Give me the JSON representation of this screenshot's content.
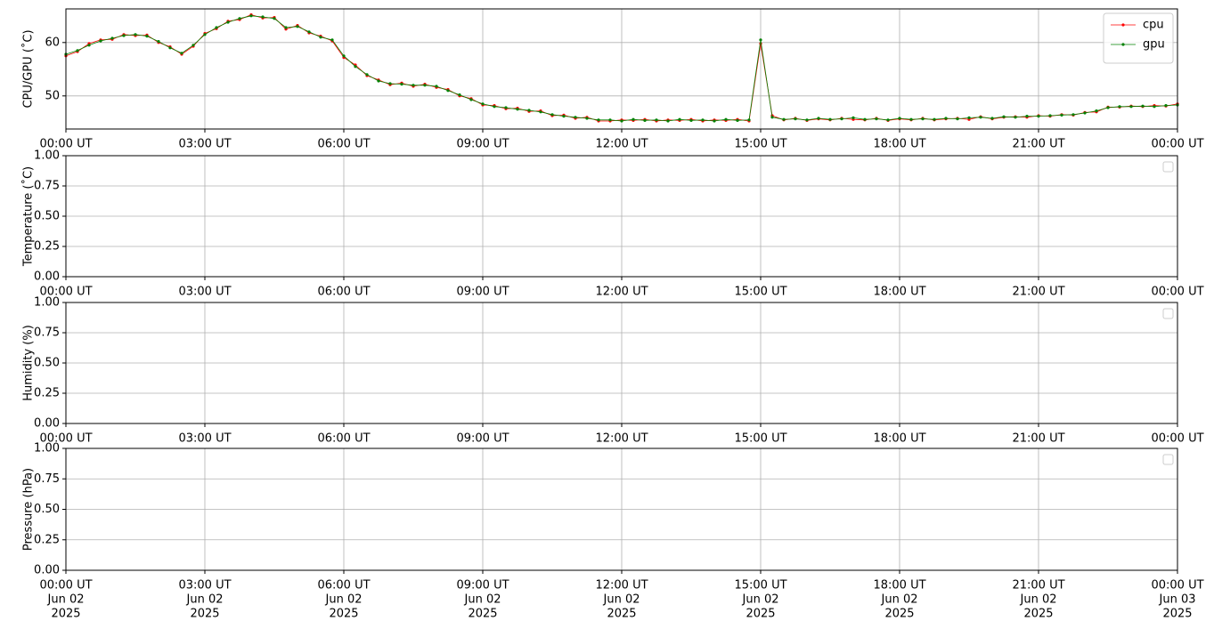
{
  "chart_data": [
    {
      "type": "line",
      "ylabel": "CPU/GPU (˚C)",
      "x": [
        "2025-06-02 00:00",
        "2025-06-02 00:15",
        "2025-06-02 00:30",
        "2025-06-02 00:45",
        "2025-06-02 01:00",
        "2025-06-02 01:15",
        "2025-06-02 01:30",
        "2025-06-02 01:45",
        "2025-06-02 02:00",
        "2025-06-02 02:15",
        "2025-06-02 02:30",
        "2025-06-02 02:45",
        "2025-06-02 03:00",
        "2025-06-02 03:15",
        "2025-06-02 03:30",
        "2025-06-02 03:45",
        "2025-06-02 04:00",
        "2025-06-02 04:15",
        "2025-06-02 04:30",
        "2025-06-02 04:45",
        "2025-06-02 05:00",
        "2025-06-02 05:15",
        "2025-06-02 05:30",
        "2025-06-02 05:45",
        "2025-06-02 06:00",
        "2025-06-02 06:15",
        "2025-06-02 06:30",
        "2025-06-02 06:45",
        "2025-06-02 07:00",
        "2025-06-02 07:15",
        "2025-06-02 07:30",
        "2025-06-02 07:45",
        "2025-06-02 08:00",
        "2025-06-02 08:15",
        "2025-06-02 08:30",
        "2025-06-02 08:45",
        "2025-06-02 09:00",
        "2025-06-02 09:15",
        "2025-06-02 09:30",
        "2025-06-02 09:45",
        "2025-06-02 10:00",
        "2025-06-02 10:15",
        "2025-06-02 10:30",
        "2025-06-02 10:45",
        "2025-06-02 11:00",
        "2025-06-02 11:15",
        "2025-06-02 11:30",
        "2025-06-02 11:45",
        "2025-06-02 12:00",
        "2025-06-02 12:15",
        "2025-06-02 12:30",
        "2025-06-02 12:45",
        "2025-06-02 13:00",
        "2025-06-02 13:15",
        "2025-06-02 13:30",
        "2025-06-02 13:45",
        "2025-06-02 14:00",
        "2025-06-02 14:15",
        "2025-06-02 14:30",
        "2025-06-02 14:45",
        "2025-06-02 15:00",
        "2025-06-02 15:15",
        "2025-06-02 15:30",
        "2025-06-02 15:45",
        "2025-06-02 16:00",
        "2025-06-02 16:15",
        "2025-06-02 16:30",
        "2025-06-02 16:45",
        "2025-06-02 17:00",
        "2025-06-02 17:15",
        "2025-06-02 17:30",
        "2025-06-02 17:45",
        "2025-06-02 18:00",
        "2025-06-02 18:15",
        "2025-06-02 18:30",
        "2025-06-02 18:45",
        "2025-06-02 19:00",
        "2025-06-02 19:15",
        "2025-06-02 19:30",
        "2025-06-02 19:45",
        "2025-06-02 20:00",
        "2025-06-02 20:15",
        "2025-06-02 20:30",
        "2025-06-02 20:45",
        "2025-06-02 21:00",
        "2025-06-02 21:15",
        "2025-06-02 21:30",
        "2025-06-02 21:45",
        "2025-06-02 22:00",
        "2025-06-02 22:15",
        "2025-06-02 22:30",
        "2025-06-02 22:45",
        "2025-06-02 23:00",
        "2025-06-02 23:15",
        "2025-06-02 23:30",
        "2025-06-02 23:45",
        "2025-06-03 00:00"
      ],
      "series": [
        {
          "name": "cpu",
          "color": "#ff0000",
          "values": [
            57.5,
            58.3,
            59.8,
            60.5,
            60.6,
            61.5,
            61.3,
            61.4,
            60,
            59.2,
            57.8,
            59.3,
            61.7,
            62.6,
            64,
            64.3,
            65.2,
            64.6,
            64.7,
            62.5,
            63.2,
            61.8,
            61.2,
            60.3,
            57.2,
            55.8,
            53.8,
            53,
            52.1,
            52.4,
            51.8,
            52.2,
            51.6,
            51.2,
            50,
            49.5,
            48.3,
            48.2,
            47.6,
            47.7,
            47.1,
            47.2,
            46.3,
            46.4,
            45.8,
            46,
            45.3,
            45.3,
            45.5,
            45.4,
            45.6,
            45.3,
            45.5,
            45.4,
            45.6,
            45.3,
            45.5,
            45.4,
            45.6,
            45.3,
            59.8,
            46.3,
            45.5,
            45.8,
            45.4,
            45.7,
            45.5,
            45.8,
            45.6,
            45.5,
            45.8,
            45.4,
            45.7,
            45.5,
            45.8,
            45.5,
            45.7,
            45.8,
            45.6,
            46.1,
            45.7,
            46,
            46.1,
            46,
            46.3,
            46.2,
            46.5,
            46.4,
            46.9,
            47,
            47.9,
            47.9,
            48.1,
            48,
            48.2,
            48.1,
            48.5
          ]
        },
        {
          "name": "gpu",
          "color": "#008000",
          "values": [
            57.8,
            58.5,
            59.5,
            60.3,
            60.8,
            61.3,
            61.5,
            61.2,
            60.2,
            59,
            58,
            59.5,
            61.5,
            62.8,
            63.8,
            64.5,
            65,
            64.8,
            64.5,
            62.8,
            63,
            62,
            61,
            60.5,
            57.5,
            55.5,
            54,
            52.8,
            52.3,
            52.2,
            52,
            52,
            51.8,
            51,
            50.2,
            49.3,
            48.5,
            48,
            47.8,
            47.5,
            47.3,
            47,
            46.5,
            46.2,
            46,
            45.8,
            45.5,
            45.5,
            45.3,
            45.6,
            45.4,
            45.5,
            45.3,
            45.6,
            45.4,
            45.5,
            45.3,
            45.6,
            45.4,
            45.5,
            60.5,
            46,
            45.6,
            45.7,
            45.5,
            45.8,
            45.6,
            45.7,
            45.9,
            45.6,
            45.7,
            45.5,
            45.8,
            45.6,
            45.7,
            45.6,
            45.8,
            45.7,
            45.9,
            46,
            45.8,
            46.1,
            46,
            46.2,
            46.2,
            46.3,
            46.4,
            46.5,
            46.8,
            47.2,
            47.8,
            48,
            48,
            48.1,
            48,
            48.2,
            48.3
          ]
        }
      ],
      "legend": "upper right",
      "xlim": [
        "2025-06-02 00:00",
        "2025-06-03 00:00"
      ],
      "xticks": [
        {
          "value": "2025-06-02 00:00",
          "label": "00:00 UT"
        },
        {
          "value": "2025-06-02 03:00",
          "label": "03:00 UT"
        },
        {
          "value": "2025-06-02 06:00",
          "label": "06:00 UT"
        },
        {
          "value": "2025-06-02 09:00",
          "label": "09:00 UT"
        },
        {
          "value": "2025-06-02 12:00",
          "label": "12:00 UT"
        },
        {
          "value": "2025-06-02 15:00",
          "label": "15:00 UT"
        },
        {
          "value": "2025-06-02 18:00",
          "label": "18:00 UT"
        },
        {
          "value": "2025-06-02 21:00",
          "label": "21:00 UT"
        },
        {
          "value": "2025-06-03 00:00",
          "label": "00:00 UT"
        }
      ],
      "ylim": [
        43.8,
        66.3
      ],
      "yticks": [
        50,
        60
      ],
      "grid": true
    },
    {
      "type": "line",
      "ylabel": "Temperature (˚C)",
      "xlim": [
        "2025-06-02 00:00",
        "2025-06-03 00:00"
      ],
      "xticks": [
        {
          "value": "2025-06-02 00:00",
          "label": "00:00 UT"
        },
        {
          "value": "2025-06-02 03:00",
          "label": "03:00 UT"
        },
        {
          "value": "2025-06-02 06:00",
          "label": "06:00 UT"
        },
        {
          "value": "2025-06-02 09:00",
          "label": "09:00 UT"
        },
        {
          "value": "2025-06-02 12:00",
          "label": "12:00 UT"
        },
        {
          "value": "2025-06-02 15:00",
          "label": "15:00 UT"
        },
        {
          "value": "2025-06-02 18:00",
          "label": "18:00 UT"
        },
        {
          "value": "2025-06-02 21:00",
          "label": "21:00 UT"
        },
        {
          "value": "2025-06-03 00:00",
          "label": "00:00 UT"
        }
      ],
      "ylim": [
        0,
        1
      ],
      "yticks": [
        {
          "value": 0,
          "label": "0.00"
        },
        {
          "value": 0.25,
          "label": "0.25"
        },
        {
          "value": 0.5,
          "label": "0.50"
        },
        {
          "value": 0.75,
          "label": "0.75"
        },
        {
          "value": 1,
          "label": "1.00"
        }
      ],
      "grid": true
    },
    {
      "type": "line",
      "ylabel": "Humidity (%)",
      "xlim": [
        "2025-06-02 00:00",
        "2025-06-03 00:00"
      ],
      "xticks": [
        {
          "value": "2025-06-02 00:00",
          "label": "00:00 UT"
        },
        {
          "value": "2025-06-02 03:00",
          "label": "03:00 UT"
        },
        {
          "value": "2025-06-02 06:00",
          "label": "06:00 UT"
        },
        {
          "value": "2025-06-02 09:00",
          "label": "09:00 UT"
        },
        {
          "value": "2025-06-02 12:00",
          "label": "12:00 UT"
        },
        {
          "value": "2025-06-02 15:00",
          "label": "15:00 UT"
        },
        {
          "value": "2025-06-02 18:00",
          "label": "18:00 UT"
        },
        {
          "value": "2025-06-02 21:00",
          "label": "21:00 UT"
        },
        {
          "value": "2025-06-03 00:00",
          "label": "00:00 UT"
        }
      ],
      "ylim": [
        0,
        1
      ],
      "yticks": [
        {
          "value": 0,
          "label": "0.00"
        },
        {
          "value": 0.25,
          "label": "0.25"
        },
        {
          "value": 0.5,
          "label": "0.50"
        },
        {
          "value": 0.75,
          "label": "0.75"
        },
        {
          "value": 1,
          "label": "1.00"
        }
      ],
      "grid": true
    },
    {
      "type": "line",
      "ylabel": "Pressure (hPa)",
      "xlim": [
        "2025-06-02 00:00",
        "2025-06-03 00:00"
      ],
      "xticks": [
        {
          "value": "2025-06-02 00:00",
          "label": [
            "00:00 UT",
            "Jun 02",
            "2025"
          ]
        },
        {
          "value": "2025-06-02 03:00",
          "label": [
            "03:00 UT",
            "Jun 02",
            "2025"
          ]
        },
        {
          "value": "2025-06-02 06:00",
          "label": [
            "06:00 UT",
            "Jun 02",
            "2025"
          ]
        },
        {
          "value": "2025-06-02 09:00",
          "label": [
            "09:00 UT",
            "Jun 02",
            "2025"
          ]
        },
        {
          "value": "2025-06-02 12:00",
          "label": [
            "12:00 UT",
            "Jun 02",
            "2025"
          ]
        },
        {
          "value": "2025-06-02 15:00",
          "label": [
            "15:00 UT",
            "Jun 02",
            "2025"
          ]
        },
        {
          "value": "2025-06-02 18:00",
          "label": [
            "18:00 UT",
            "Jun 02",
            "2025"
          ]
        },
        {
          "value": "2025-06-02 21:00",
          "label": [
            "21:00 UT",
            "Jun 02",
            "2025"
          ]
        },
        {
          "value": "2025-06-03 00:00",
          "label": [
            "00:00 UT",
            "Jun 03",
            "2025"
          ]
        }
      ],
      "ylim": [
        0,
        1
      ],
      "yticks": [
        {
          "value": 0,
          "label": "0.00"
        },
        {
          "value": 0.25,
          "label": "0.25"
        },
        {
          "value": 0.5,
          "label": "0.50"
        },
        {
          "value": 0.75,
          "label": "0.75"
        },
        {
          "value": 1,
          "label": "1.00"
        }
      ],
      "grid": true
    }
  ]
}
